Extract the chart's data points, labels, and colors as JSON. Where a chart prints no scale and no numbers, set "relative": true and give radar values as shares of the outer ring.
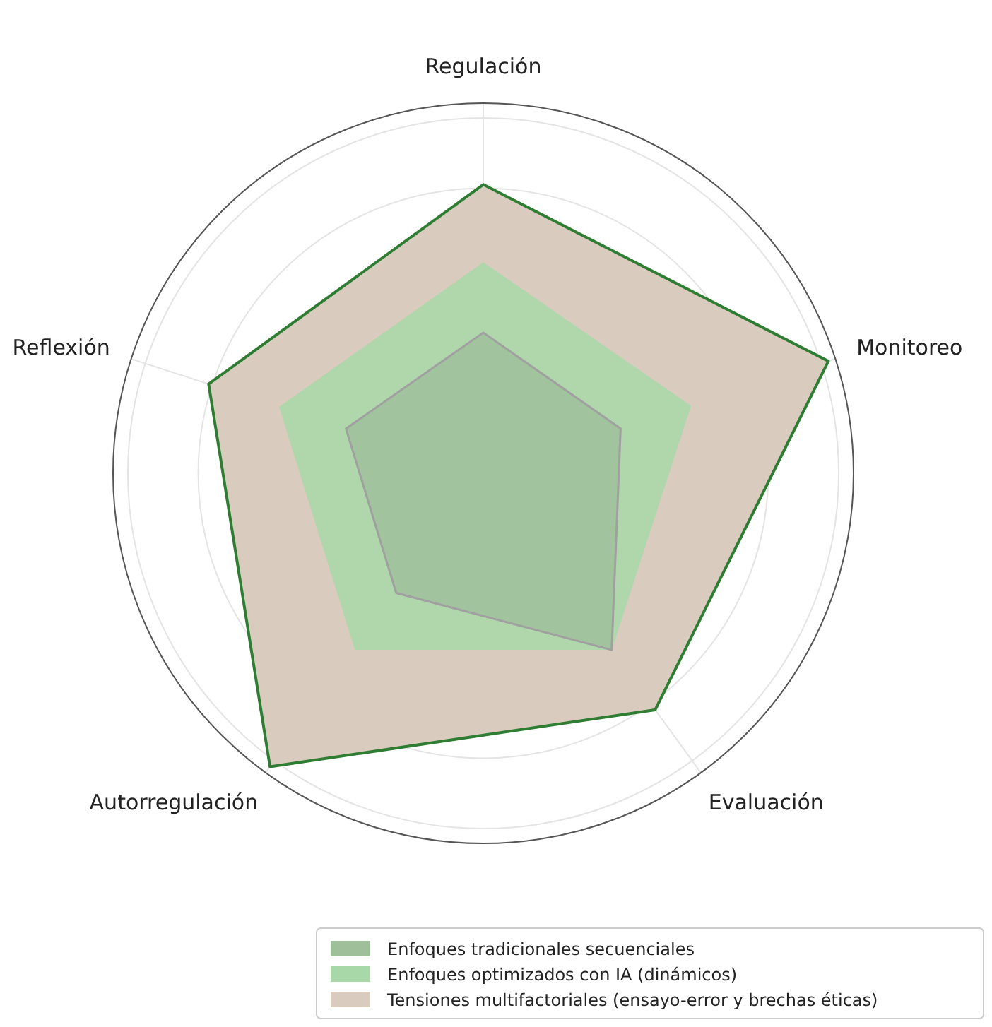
{
  "chart_data": {
    "type": "radar",
    "relative": true,
    "categories": [
      "Regulación",
      "Monitoreo",
      "Evaluación",
      "Autorregulación",
      "Reflexión"
    ],
    "series": [
      {
        "name": "Tensiones multifactoriales (ensayo-error y brechas éticas)",
        "color": "#d9ccbe",
        "values": [
          0.78,
          0.98,
          0.79,
          0.98,
          0.78
        ]
      },
      {
        "name": "Enfoques optimizados con IA (dinámicos)",
        "color": "#a8d8a8",
        "values": [
          0.57,
          0.59,
          0.59,
          0.59,
          0.58
        ]
      },
      {
        "name": "Enfoques tradicionales secuenciales",
        "color": "#9fbf9a",
        "values": [
          0.38,
          0.39,
          0.59,
          0.4,
          0.39
        ]
      }
    ],
    "grid": true,
    "legend": "bottom right"
  }
}
